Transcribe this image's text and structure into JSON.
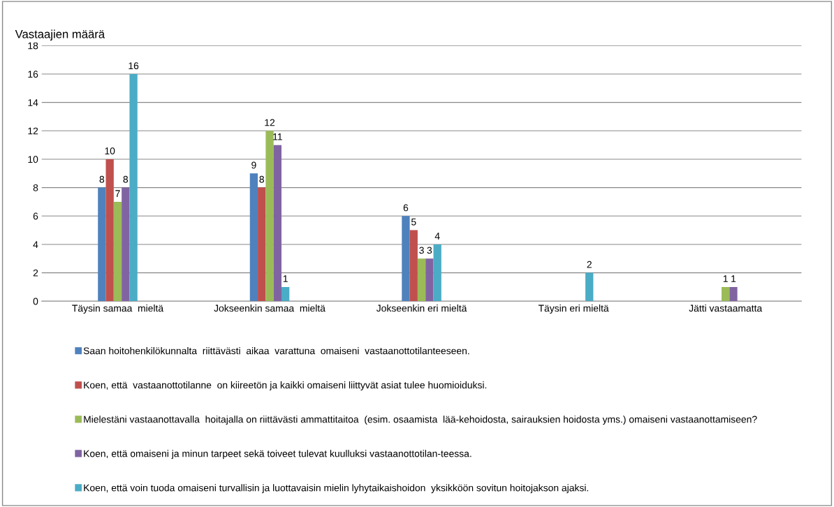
{
  "chart_data": {
    "type": "bar",
    "ylabel": "Vastaajien määrä",
    "categories": [
      "Täysin samaa  mieltä",
      "Jokseenkin samaa  mieltä",
      "Jokseenkin eri mieltä",
      "Täysin eri mieltä",
      "Jätti vastaamatta"
    ],
    "series": [
      {
        "name": "Saan hoitohenkilökunnalta  riittävästi  aikaa  varattuna  omaiseni  vastaanottotilanteeseen.",
        "color": "#4f81bd",
        "values": [
          8,
          9,
          6,
          0,
          0
        ],
        "value_labels": [
          "8",
          "9",
          "6",
          null,
          null
        ]
      },
      {
        "name": "Koen, että  vastaanottotilanne  on kiireetön ja kaikki omaiseni liittyvät asiat tulee huomioiduksi.",
        "color": "#c0504d",
        "values": [
          10,
          8,
          5,
          0,
          0
        ],
        "value_labels": [
          "10",
          "8",
          "5",
          null,
          null
        ]
      },
      {
        "name": "Mielestäni vastaanottavalla  hoitajalla on riittävästi ammattitaitoa  (esim. osaamista  lää-kehoidosta, sairauksien hoidosta yms.) omaiseni vastaanottamiseen?",
        "color": "#9bbb59",
        "values": [
          7,
          12,
          3,
          0,
          1
        ],
        "value_labels": [
          "7",
          "12",
          "3",
          null,
          "1"
        ]
      },
      {
        "name": "Koen, että omaiseni ja minun tarpeet sekä toiveet tulevat kuulluksi vastaanottotilan-teessa.",
        "color": "#8064a2",
        "values": [
          8,
          11,
          3,
          0,
          1
        ],
        "value_labels": [
          "8",
          "11",
          "3",
          null,
          "1"
        ]
      },
      {
        "name": "Koen, että voin tuoda omaiseni turvallisin ja luottavaisin mielin lyhytaikaishoidon  yksikköön sovitun hoitojakson ajaksi.",
        "color": "#4bacc6",
        "values": [
          16,
          1,
          4,
          2,
          0
        ],
        "value_labels": [
          "16",
          "1",
          "4",
          "2",
          null
        ]
      }
    ],
    "ylim": [
      0,
      18
    ],
    "yticks": [
      0,
      2,
      4,
      6,
      8,
      10,
      12,
      14,
      16,
      18
    ],
    "grid": "y",
    "legend": "bottom"
  }
}
